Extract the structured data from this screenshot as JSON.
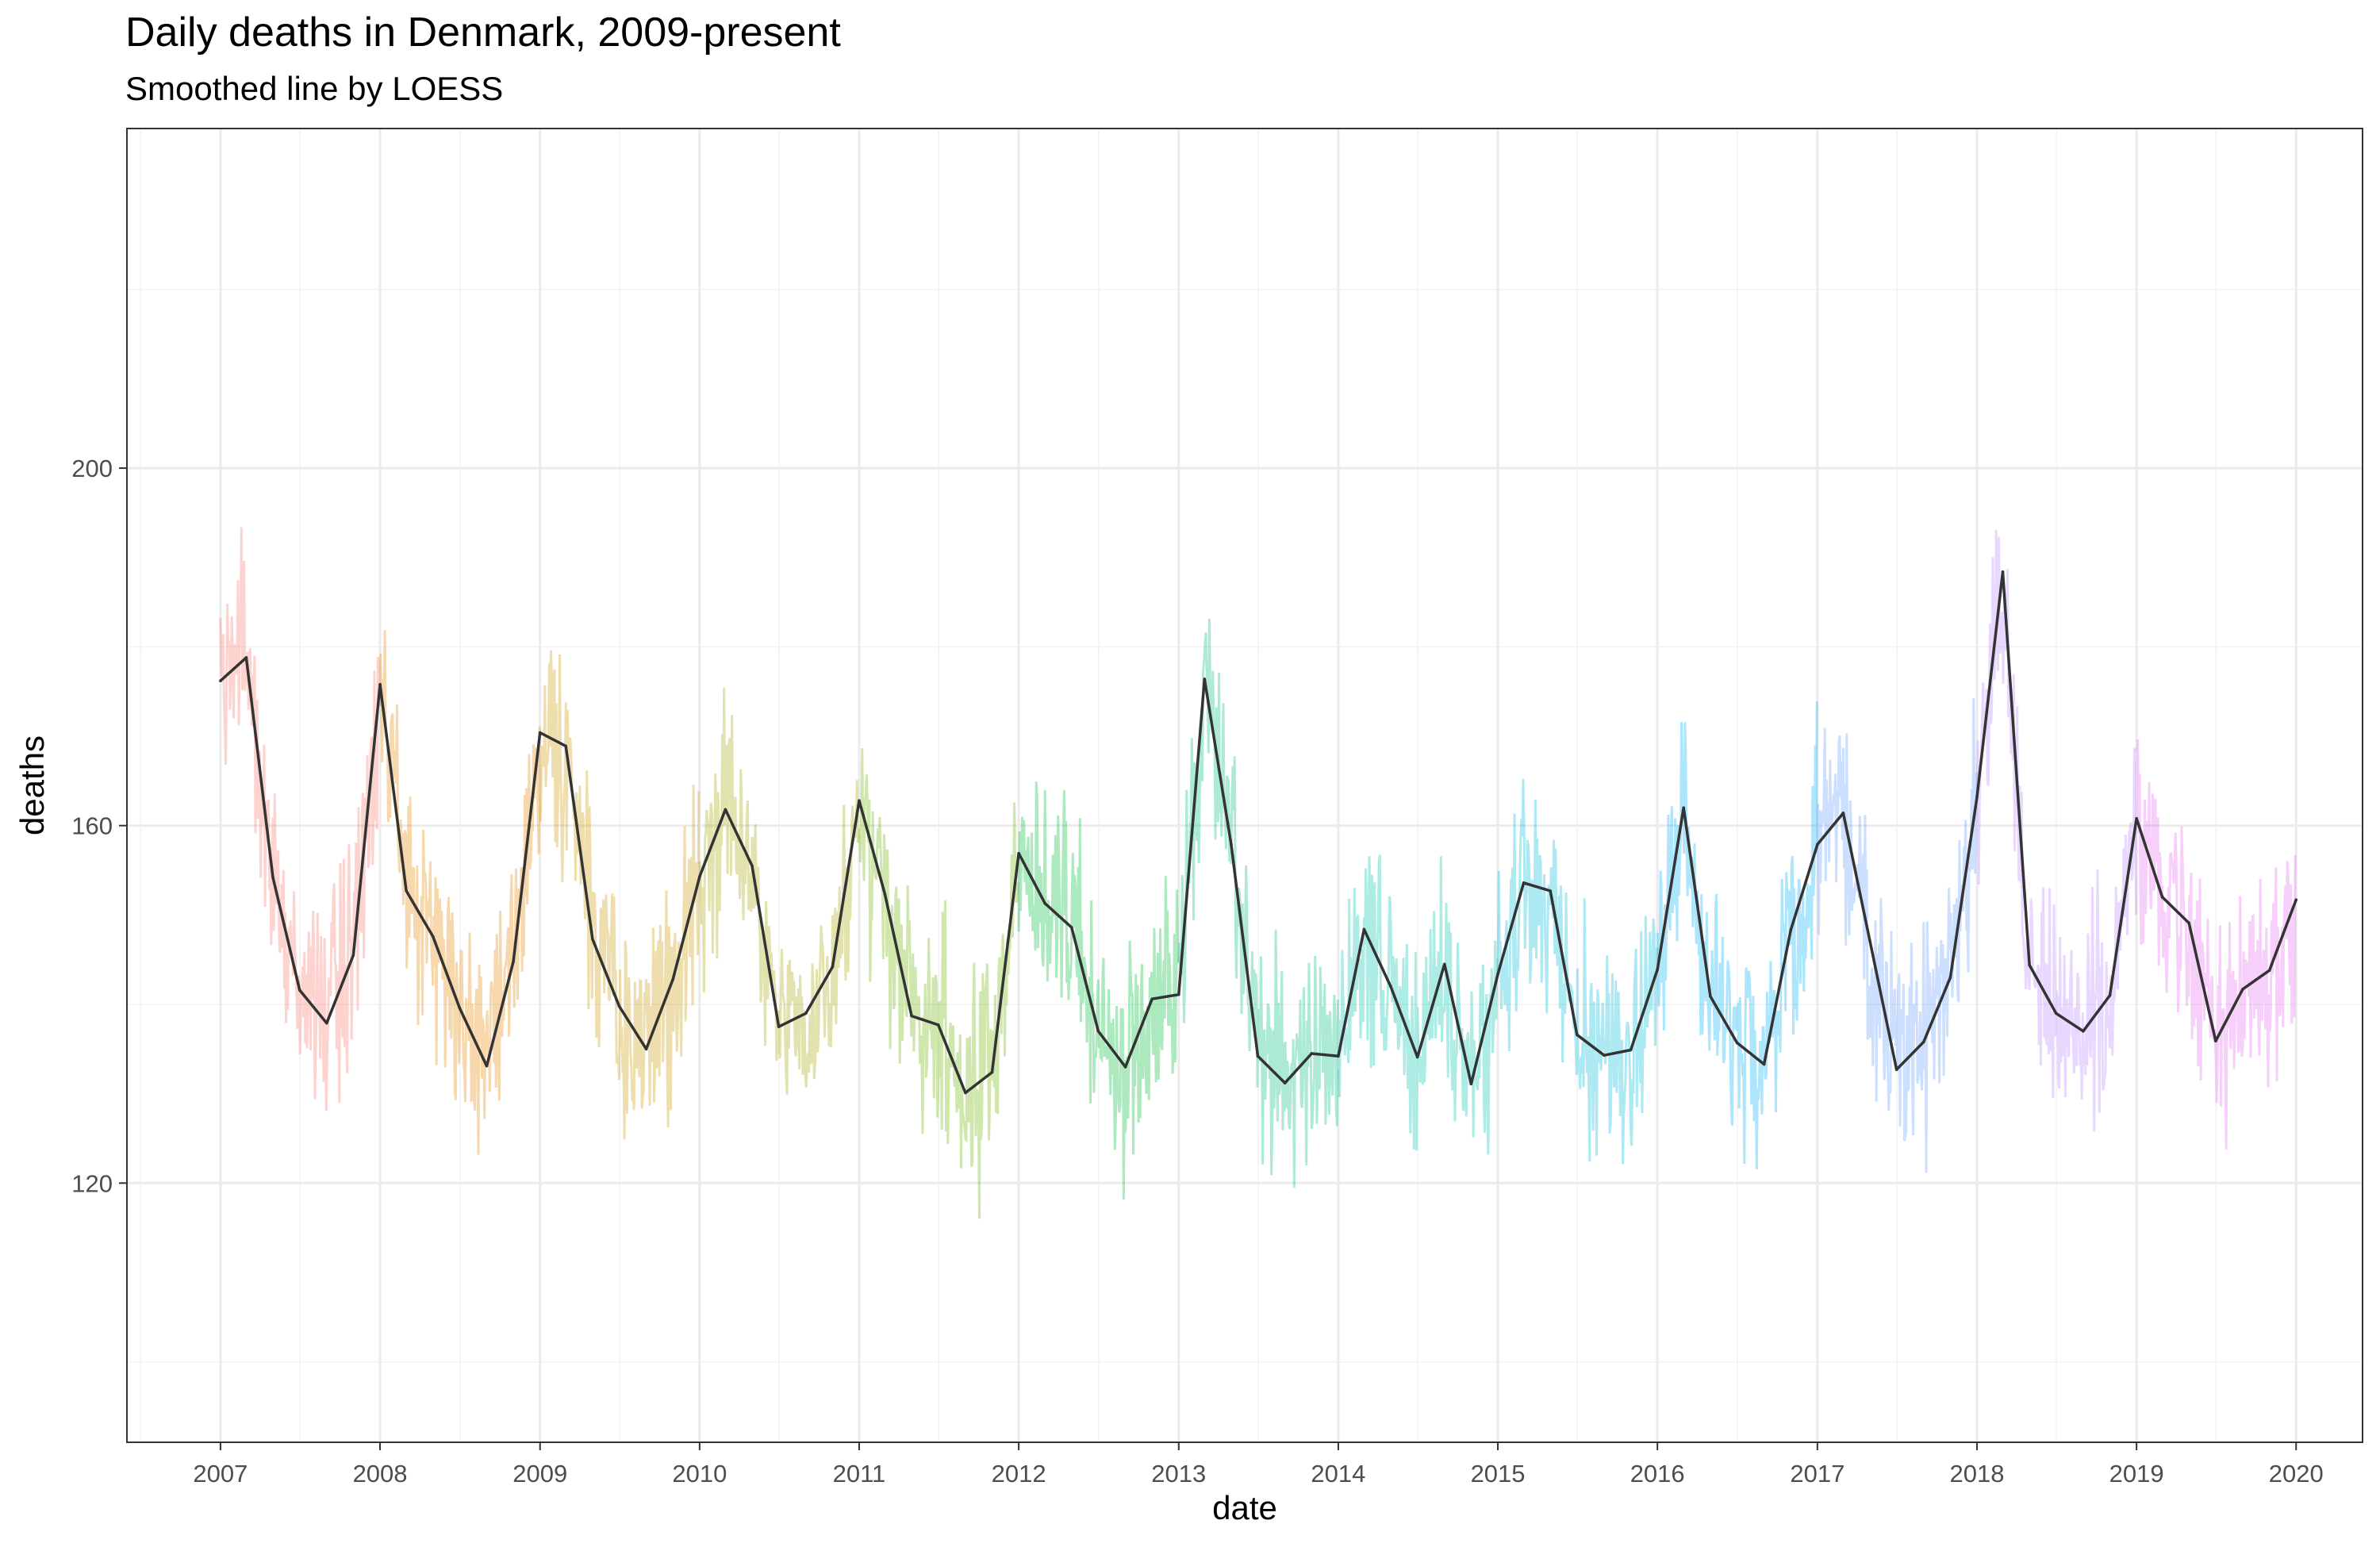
{
  "chart_data": {
    "type": "line",
    "title": "Daily deaths in Denmark, 2009-present",
    "subtitle": "Smoothed line by LOESS",
    "xlabel": "date",
    "ylabel": "deaths",
    "x_ticks": [
      "2007",
      "2008",
      "2009",
      "2010",
      "2011",
      "2012",
      "2013",
      "2014",
      "2015",
      "2016",
      "2017",
      "2018",
      "2019",
      "2020"
    ],
    "y_ticks": [
      120,
      160,
      200
    ],
    "xlim": [
      "2006-06-01",
      "2020-06-01"
    ],
    "ylim": [
      91,
      238
    ],
    "grid": true,
    "legend": "none",
    "year_colors": [
      "#f8766d",
      "#e58700",
      "#c99800",
      "#a3a500",
      "#6bb100",
      "#00ba38",
      "#00bf7d",
      "#00c0af",
      "#00bcd8",
      "#00b0f6",
      "#619cff",
      "#b983ff",
      "#e76bf3",
      "#fd61d1"
    ],
    "series": [
      {
        "name": "",
        "kind": "smoothed",
        "x": [
          "2007-01-01",
          "2007-03-01",
          "2007-05-01",
          "2007-07-01",
          "2007-09-01",
          "2007-11-01",
          "2008-01-01",
          "2008-03-01",
          "2008-05-01",
          "2008-07-01",
          "2008-09-01",
          "2008-11-01",
          "2009-01-01",
          "2009-03-01",
          "2009-05-01",
          "2009-07-01",
          "2009-09-01",
          "2009-11-01",
          "2010-01-01",
          "2010-03-01",
          "2010-05-01",
          "2010-07-01",
          "2010-09-01",
          "2010-11-01",
          "2011-01-01",
          "2011-03-01",
          "2011-05-01",
          "2011-07-01",
          "2011-09-01",
          "2011-11-01",
          "2012-01-01",
          "2012-03-01",
          "2012-05-01",
          "2012-07-01",
          "2012-09-01",
          "2012-11-01",
          "2013-01-01",
          "2013-03-01",
          "2013-05-01",
          "2013-07-01",
          "2013-09-01",
          "2013-11-01",
          "2014-01-01",
          "2014-03-01",
          "2014-05-01",
          "2014-07-01",
          "2014-09-01",
          "2014-11-01",
          "2015-01-01",
          "2015-03-01",
          "2015-05-01",
          "2015-07-01",
          "2015-09-01",
          "2015-11-01",
          "2016-01-01",
          "2016-03-01",
          "2016-05-01",
          "2016-07-01",
          "2016-09-01",
          "2016-11-01",
          "2017-01-01",
          "2017-03-01",
          "2017-05-01",
          "2017-07-01",
          "2017-09-01",
          "2017-11-01",
          "2018-01-01",
          "2018-03-01",
          "2018-05-01",
          "2018-07-01",
          "2018-09-01",
          "2018-11-01",
          "2019-01-01",
          "2019-03-01",
          "2019-05-01",
          "2019-07-01",
          "2019-09-01",
          "2019-11-01",
          "2020-01-01"
        ],
        "values": [
          176.2,
          178.8,
          154.2,
          141.6,
          137.9,
          145.5,
          175.8,
          152.7,
          147.6,
          139.6,
          133.1,
          144.8,
          170.4,
          168.9,
          147.3,
          139.8,
          135.0,
          142.8,
          154.3,
          161.8,
          155.5,
          137.5,
          139.0,
          144.2,
          162.8,
          152.3,
          138.7,
          137.7,
          130.1,
          132.4,
          156.9,
          151.3,
          148.6,
          137.0,
          133.0,
          140.6,
          141.1,
          176.4,
          157.9,
          134.2,
          131.2,
          134.5,
          134.2,
          148.4,
          142.0,
          134.1,
          144.5,
          131.1,
          143.4,
          153.6,
          152.7,
          136.6,
          134.3,
          134.9,
          143.9,
          162.0,
          140.9,
          135.7,
          133.3,
          148.3,
          157.9,
          161.4,
          147.1,
          132.7,
          135.8,
          143.0,
          163.2,
          188.4,
          144.4,
          139.0,
          137.0,
          141.0,
          160.8,
          152.0,
          149.1,
          135.9,
          141.7,
          143.8,
          151.7
        ]
      }
    ]
  }
}
